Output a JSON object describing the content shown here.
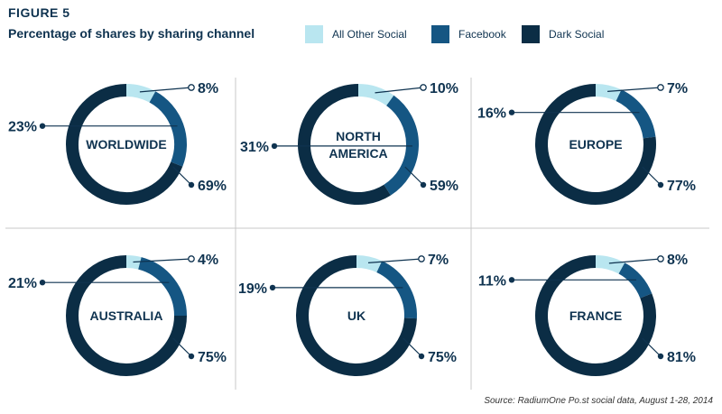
{
  "header": {
    "figure_label": "FIGURE 5",
    "subtitle": "Percentage of shares by sharing channel"
  },
  "legend": [
    {
      "name": "All Other Social",
      "color": "#b9e6f0"
    },
    {
      "name": "Facebook",
      "color": "#155683"
    },
    {
      "name": "Dark Social",
      "color": "#0b2d45"
    }
  ],
  "chart_data": {
    "type": "pie",
    "title": "Percentage of shares by sharing channel",
    "series_names": [
      "All Other Social",
      "Facebook",
      "Dark Social"
    ],
    "charts": [
      {
        "label": "WORLDWIDE",
        "values": [
          8,
          23,
          69
        ],
        "labels": [
          "8%",
          "23%",
          "69%"
        ]
      },
      {
        "label": "NORTH AMERICA",
        "values": [
          10,
          31,
          59
        ],
        "labels": [
          "10%",
          "31%",
          "59%"
        ]
      },
      {
        "label": "EUROPE",
        "values": [
          7,
          16,
          77
        ],
        "labels": [
          "7%",
          "16%",
          "77%"
        ]
      },
      {
        "label": "AUSTRALIA",
        "values": [
          4,
          21,
          75
        ],
        "labels": [
          "4%",
          "21%",
          "75%"
        ]
      },
      {
        "label": "UK",
        "values": [
          7,
          19,
          75
        ],
        "labels": [
          "7%",
          "19%",
          "75%"
        ]
      },
      {
        "label": "FRANCE",
        "values": [
          8,
          11,
          81
        ],
        "labels": [
          "8%",
          "11%",
          "81%"
        ]
      }
    ]
  },
  "source": "Source: RadiumOne Po.st social data, August 1-28, 2014"
}
